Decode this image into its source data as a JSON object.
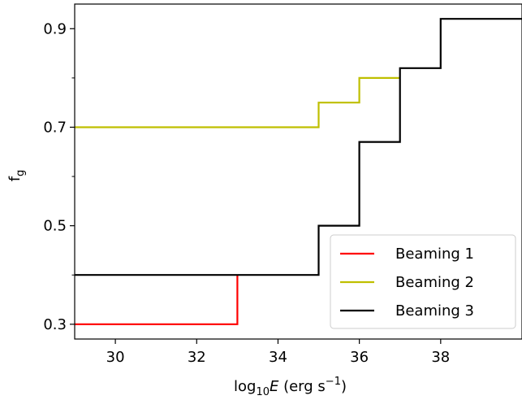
{
  "chart_data": {
    "type": "line",
    "step": true,
    "xlabel": "log10Ė (erg s−1)",
    "xlabel_parts": {
      "main": "log",
      "sub": "10",
      "symbol": "E",
      "units": " (erg s",
      "sup": "−1",
      "close": ")"
    },
    "ylabel": "fg",
    "ylabel_parts": {
      "main": "f",
      "sub": "g"
    },
    "xlim": [
      29,
      40
    ],
    "ylim": [
      0.27,
      0.95
    ],
    "x_ticks": [
      30,
      32,
      34,
      36,
      38
    ],
    "x_tick_labels": [
      "30",
      "32",
      "34",
      "36",
      "38"
    ],
    "y_ticks": [
      0.3,
      0.5,
      0.7,
      0.9
    ],
    "y_tick_labels": [
      "0.3",
      "0.5",
      "0.7",
      "0.9"
    ],
    "y_minor_ticks": [
      0.4,
      0.6,
      0.8
    ],
    "legend": "lower right",
    "grid": false,
    "series": [
      {
        "name": "Beaming 1",
        "color": "#ff0000",
        "x": [
          29,
          33,
          33
        ],
        "y": [
          0.3,
          0.3,
          0.4
        ]
      },
      {
        "name": "Beaming 2",
        "color": "#bfbf00",
        "x": [
          29,
          35,
          35,
          36,
          36,
          37
        ],
        "y": [
          0.7,
          0.7,
          0.75,
          0.75,
          0.8,
          0.8
        ]
      },
      {
        "name": "Beaming 3",
        "color": "#000000",
        "x": [
          29,
          35,
          35,
          36,
          36,
          37,
          37,
          38,
          38,
          40
        ],
        "y": [
          0.4,
          0.4,
          0.5,
          0.5,
          0.67,
          0.67,
          0.82,
          0.82,
          0.92,
          0.92
        ]
      }
    ]
  }
}
